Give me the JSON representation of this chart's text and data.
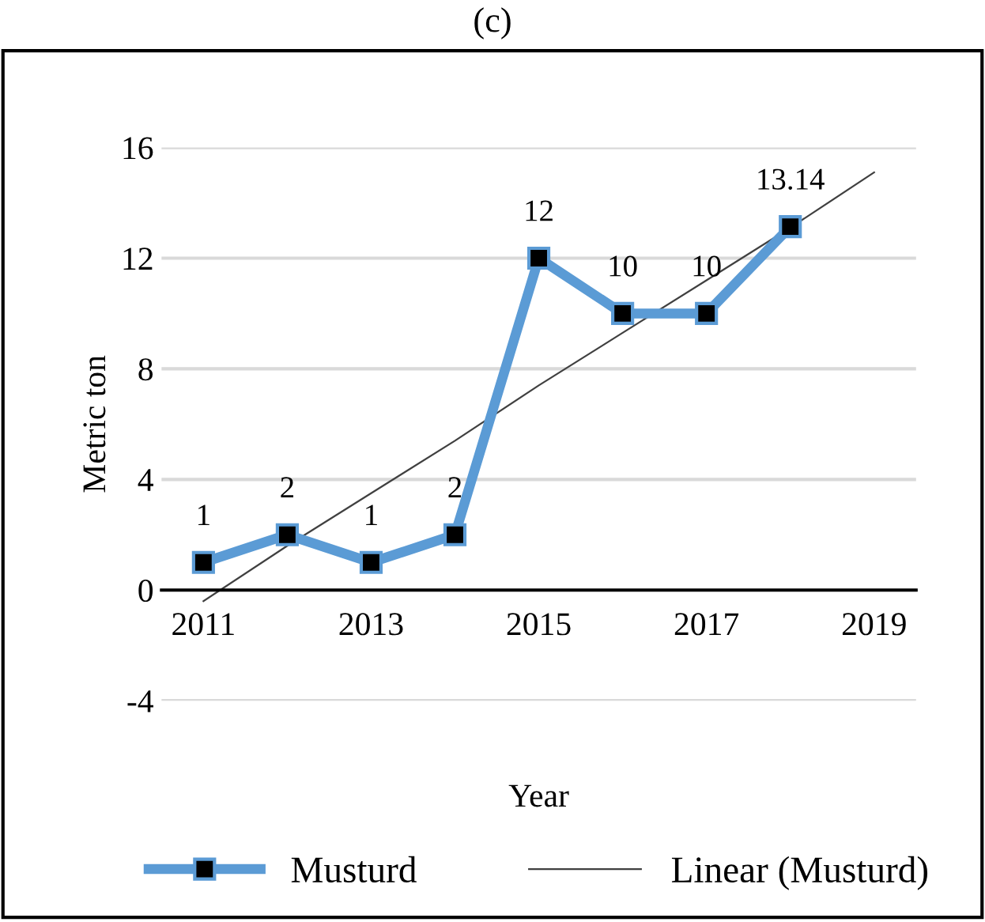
{
  "chart_data": {
    "type": "line",
    "title": "(c)",
    "xlabel": "Year",
    "ylabel": "Metric ton",
    "categories": [
      "2011",
      null,
      "2013",
      null,
      "2015",
      null,
      "2017",
      null,
      "2019"
    ],
    "series": [
      {
        "name": "Musturd",
        "color": "#5b9bd5",
        "values": [
          1,
          2,
          1,
          2,
          12,
          10,
          10,
          13.14,
          null
        ],
        "value_labels": [
          "1",
          "2",
          "1",
          "2",
          "12",
          "10",
          "10",
          "13.14",
          null
        ],
        "marker": "square"
      },
      {
        "name": "Linear (Musturd)",
        "color": "#404040",
        "type": "line",
        "values": [
          -0.4,
          1.6,
          3.5,
          5.4,
          7.4,
          9.3,
          11.2,
          13.1,
          15.1
        ],
        "marker": "none"
      }
    ],
    "ylim": [
      -4,
      16
    ],
    "yticks": [
      -4,
      0,
      4,
      8,
      12,
      16
    ],
    "grid": "y",
    "legend": "bottom"
  }
}
